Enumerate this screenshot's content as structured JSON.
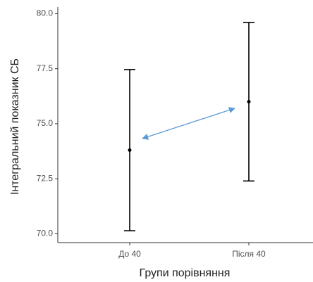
{
  "chart_data": {
    "type": "errorbar",
    "x_label": "Групи порівняння",
    "y_label": "Інтегральний показник СБ",
    "categories": [
      "До 40",
      "Після 40"
    ],
    "values": [
      73.8,
      76.0
    ],
    "errors": [
      3.66,
      3.6
    ],
    "color": "#000000",
    "ylim": [
      69.6,
      80.3
    ],
    "yticks": [
      {
        "value": 70,
        "label": "70.0"
      },
      {
        "value": 72.5,
        "label": "72.5"
      },
      {
        "value": 75,
        "label": "75.0"
      },
      {
        "value": 77.5,
        "label": "77.5"
      },
      {
        "value": 80,
        "label": "80.0"
      }
    ],
    "grid": false
  }
}
